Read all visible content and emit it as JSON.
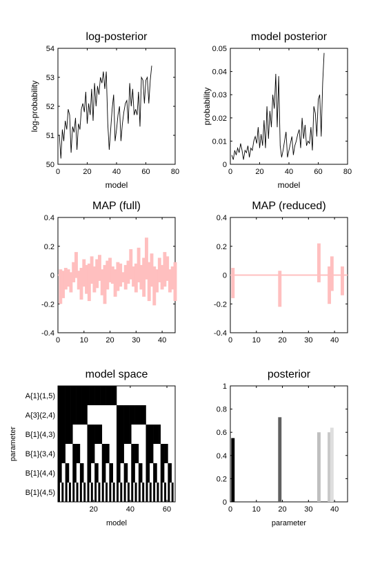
{
  "chart_data": [
    {
      "type": "line",
      "title": "log-posterior",
      "xlabel": "model",
      "ylabel": "log-probability",
      "xlim": [
        0,
        80
      ],
      "ylim": [
        50,
        54
      ],
      "xticks": [
        0,
        20,
        40,
        60,
        80
      ],
      "yticks": [
        50,
        51,
        52,
        53,
        54
      ],
      "color": "#000000",
      "x": [
        1,
        2,
        3,
        4,
        5,
        6,
        7,
        8,
        9,
        10,
        11,
        12,
        13,
        14,
        15,
        16,
        17,
        18,
        19,
        20,
        21,
        22,
        23,
        24,
        25,
        26,
        27,
        28,
        29,
        30,
        31,
        32,
        33,
        34,
        35,
        36,
        37,
        38,
        39,
        40,
        41,
        42,
        43,
        44,
        45,
        46,
        47,
        48,
        49,
        50,
        51,
        52,
        53,
        54,
        55,
        56,
        57,
        58,
        59,
        60,
        61,
        62,
        63,
        64
      ],
      "y": [
        51.0,
        50.2,
        51.2,
        50.8,
        51.5,
        51.2,
        51.9,
        51.7,
        50.4,
        51.3,
        51.1,
        51.6,
        50.5,
        51.4,
        51.2,
        51.9,
        52.1,
        51.8,
        52.5,
        51.4,
        52.1,
        51.7,
        52.6,
        51.5,
        52.8,
        52.0,
        52.7,
        52.4,
        53.0,
        52.8,
        53.2,
        52.6,
        53.2,
        51.4,
        50.5,
        51.2,
        51.9,
        52.4,
        50.8,
        51.2,
        51.7,
        52.0,
        50.8,
        51.4,
        51.8,
        52.1,
        52.2,
        51.4,
        52.8,
        52.0,
        52.6,
        51.7,
        51.9,
        51.7,
        52.5,
        51.3,
        53.0,
        52.9,
        52.1,
        52.9,
        53.0,
        52.1,
        52.9,
        53.4
      ]
    },
    {
      "type": "line",
      "title": "model posterior",
      "xlabel": "model",
      "ylabel": "probability",
      "xlim": [
        0,
        80
      ],
      "ylim": [
        0,
        0.05
      ],
      "xticks": [
        0,
        20,
        40,
        60,
        80
      ],
      "yticks": [
        0,
        0.01,
        0.02,
        0.03,
        0.04,
        0.05
      ],
      "color": "#000000",
      "x": [
        1,
        2,
        3,
        4,
        5,
        6,
        7,
        8,
        9,
        10,
        11,
        12,
        13,
        14,
        15,
        16,
        17,
        18,
        19,
        20,
        21,
        22,
        23,
        24,
        25,
        26,
        27,
        28,
        29,
        30,
        31,
        32,
        33,
        34,
        35,
        36,
        37,
        38,
        39,
        40,
        41,
        42,
        43,
        44,
        45,
        46,
        47,
        48,
        49,
        50,
        51,
        52,
        53,
        54,
        55,
        56,
        57,
        58,
        59,
        60,
        61,
        62,
        63,
        64
      ],
      "y": [
        0.004,
        0.002,
        0.006,
        0.004,
        0.007,
        0.005,
        0.009,
        0.006,
        0.002,
        0.006,
        0.005,
        0.008,
        0.003,
        0.007,
        0.006,
        0.01,
        0.012,
        0.009,
        0.016,
        0.007,
        0.013,
        0.008,
        0.019,
        0.007,
        0.025,
        0.011,
        0.023,
        0.016,
        0.03,
        0.024,
        0.039,
        0.016,
        0.038,
        0.008,
        0.003,
        0.006,
        0.01,
        0.014,
        0.003,
        0.006,
        0.009,
        0.012,
        0.004,
        0.008,
        0.01,
        0.013,
        0.015,
        0.007,
        0.02,
        0.011,
        0.017,
        0.008,
        0.01,
        0.009,
        0.016,
        0.006,
        0.025,
        0.022,
        0.012,
        0.028,
        0.03,
        0.012,
        0.035,
        0.048
      ]
    },
    {
      "type": "bar",
      "title": "MAP (full)",
      "xlim": [
        0,
        45
      ],
      "ylim": [
        -0.4,
        0.4
      ],
      "xticks": [
        0,
        10,
        20,
        30,
        40
      ],
      "yticks": [
        -0.4,
        -0.2,
        0,
        0.2,
        0.4
      ],
      "color": "#ffbfbf",
      "x": [
        1,
        2,
        3,
        4,
        5,
        6,
        7,
        8,
        9,
        10,
        11,
        12,
        13,
        14,
        15,
        16,
        17,
        18,
        19,
        20,
        21,
        22,
        23,
        24,
        25,
        26,
        27,
        28,
        29,
        30,
        31,
        32,
        33,
        34,
        35,
        36,
        37,
        38,
        39,
        40,
        41,
        42,
        43,
        44,
        45
      ],
      "low": [
        -0.2,
        -0.16,
        -0.1,
        -0.08,
        -0.12,
        -0.05,
        -0.02,
        -0.1,
        -0.17,
        -0.08,
        -0.13,
        -0.18,
        -0.06,
        -0.12,
        -0.09,
        -0.04,
        -0.14,
        -0.2,
        -0.1,
        -0.05,
        -0.06,
        -0.15,
        -0.11,
        -0.08,
        -0.05,
        -0.1,
        -0.06,
        -0.03,
        -0.08,
        -0.12,
        -0.05,
        -0.1,
        -0.15,
        -0.03,
        -0.18,
        -0.08,
        -0.21,
        -0.12,
        -0.05,
        -0.1,
        -0.08,
        -0.04,
        -0.12,
        -0.1,
        -0.18
      ],
      "high": [
        0.04,
        0.03,
        0.05,
        0.04,
        0.02,
        0.09,
        0.16,
        0.03,
        0.05,
        0.11,
        0.07,
        0.08,
        0.13,
        0.06,
        0.11,
        0.14,
        0.04,
        0.07,
        0.1,
        0.12,
        0.06,
        0.04,
        0.09,
        0.08,
        0.02,
        0.07,
        0.1,
        0.18,
        0.06,
        0.08,
        0.19,
        0.07,
        0.12,
        0.26,
        0.09,
        0.15,
        0.06,
        0.04,
        0.12,
        0.07,
        0.16,
        0.13,
        0.04,
        0.06,
        0.09
      ]
    },
    {
      "type": "bar",
      "title": "MAP (reduced)",
      "xlim": [
        0,
        45
      ],
      "ylim": [
        -0.4,
        0.4
      ],
      "xticks": [
        0,
        10,
        20,
        30,
        40
      ],
      "yticks": [
        -0.4,
        -0.2,
        0,
        0.2,
        0.4
      ],
      "color": "#ffbfbf",
      "x": [
        1,
        19,
        34,
        38,
        39,
        43
      ],
      "low": [
        -0.16,
        -0.22,
        -0.05,
        -0.2,
        -0.11,
        -0.14
      ],
      "high": [
        0.05,
        0.03,
        0.22,
        0.06,
        0.13,
        0.06
      ]
    },
    {
      "type": "heatmap",
      "title": "model space",
      "xlabel": "model",
      "ylabel": "parameter",
      "xlim": [
        0.5,
        64.5
      ],
      "xticks": [
        20,
        40,
        60
      ],
      "rows": [
        "A{1}(1,5)",
        "A{3}(2,4)",
        "B{1}(4,3)",
        "B{1}(3,4)",
        "B{1}(4,4)",
        "B{1}(4,5)"
      ],
      "periods": [
        64,
        32,
        16,
        8,
        4,
        2
      ],
      "colors": [
        "#000000",
        "#ffffff"
      ]
    },
    {
      "type": "bar",
      "title": "posterior",
      "xlabel": "parameter",
      "xlim": [
        0,
        45
      ],
      "ylim": [
        0,
        1
      ],
      "xticks": [
        0,
        10,
        20,
        30,
        40
      ],
      "yticks": [
        0,
        0.2,
        0.4,
        0.6,
        0.8,
        1
      ],
      "x": [
        1,
        19,
        34,
        38,
        39
      ],
      "values": [
        0.55,
        0.73,
        0.6,
        0.6,
        0.64
      ],
      "colors": [
        "#000000",
        "#606060",
        "#bfbfbf",
        "#c8c8c8",
        "#dedede"
      ]
    }
  ]
}
